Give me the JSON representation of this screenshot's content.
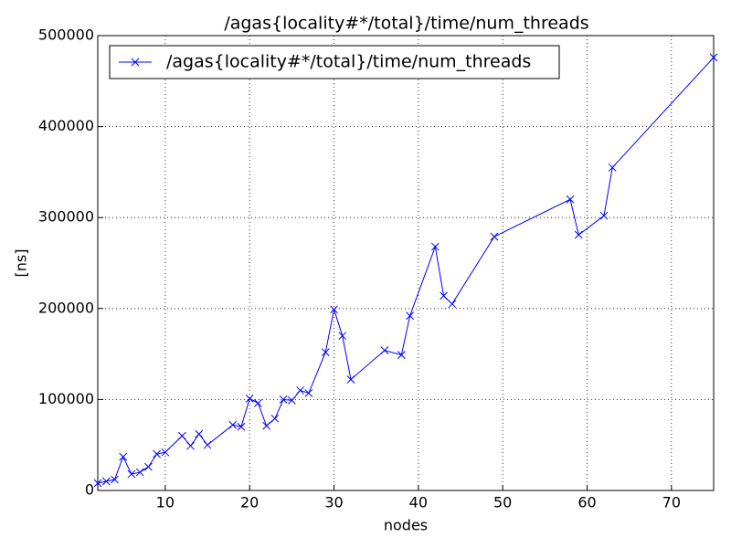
{
  "chart_data": {
    "type": "line",
    "title": "/agas{locality#*/total}/time/num_threads",
    "x_label": "nodes",
    "y_label": "[ns]",
    "x": [
      2,
      3,
      4,
      5,
      6,
      7,
      8,
      9,
      10,
      12,
      13,
      14,
      15,
      18,
      19,
      20,
      21,
      22,
      23,
      24,
      25,
      26,
      27,
      29,
      30,
      31,
      32,
      36,
      38,
      39,
      42,
      43,
      44,
      49,
      58,
      59,
      62,
      63,
      75
    ],
    "series": [
      {
        "name": "/agas{locality#*/total}/time/num_threads",
        "color": "#0000ff",
        "values": [
          8000,
          10000,
          12000,
          37000,
          18000,
          20000,
          26000,
          40000,
          42000,
          60000,
          49000,
          62000,
          50000,
          72000,
          70000,
          101000,
          96000,
          71000,
          79000,
          100000,
          99000,
          110000,
          107000,
          152000,
          199000,
          170000,
          122000,
          154000,
          149000,
          192000,
          268000,
          214000,
          205000,
          279000,
          320000,
          281000,
          302000,
          355000,
          476000
        ]
      }
    ],
    "xlim": [
      2,
      75
    ],
    "xticks": [
      10,
      20,
      30,
      40,
      50,
      60,
      70
    ],
    "ylim": [
      0,
      500000
    ],
    "yticks": [
      0,
      100000,
      200000,
      300000,
      400000,
      500000
    ],
    "grid": true,
    "legend": "upper-left"
  }
}
